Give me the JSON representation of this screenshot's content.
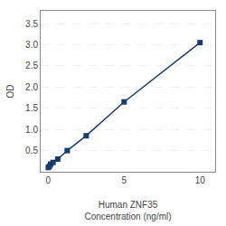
{
  "chart_data": {
    "type": "line",
    "xlabel": "Human ZNF35\nConcentration (ng/ml)",
    "ylabel": "OD",
    "x": [
      0.0,
      0.078,
      0.156,
      0.313,
      0.625,
      1.25,
      2.5,
      5.0,
      10.0
    ],
    "series": [
      {
        "name": "OD",
        "color": "#1a3a6b",
        "marker": "square",
        "values": [
          0.1,
          0.13,
          0.18,
          0.22,
          0.3,
          0.5,
          0.85,
          1.65,
          3.05
        ]
      }
    ],
    "xlim": [
      -0.5,
      11.0
    ],
    "ylim": [
      0,
      3.8
    ],
    "xticks": [
      0,
      5,
      10
    ],
    "yticks": [
      0.5,
      {
        "value": 1.0,
        "label": "1.0"
      },
      1.5,
      {
        "value": 2.0,
        "label": "2.0"
      },
      2.5,
      {
        "value": 3.0,
        "label": "3.0"
      },
      3.5
    ],
    "grid": "y"
  }
}
